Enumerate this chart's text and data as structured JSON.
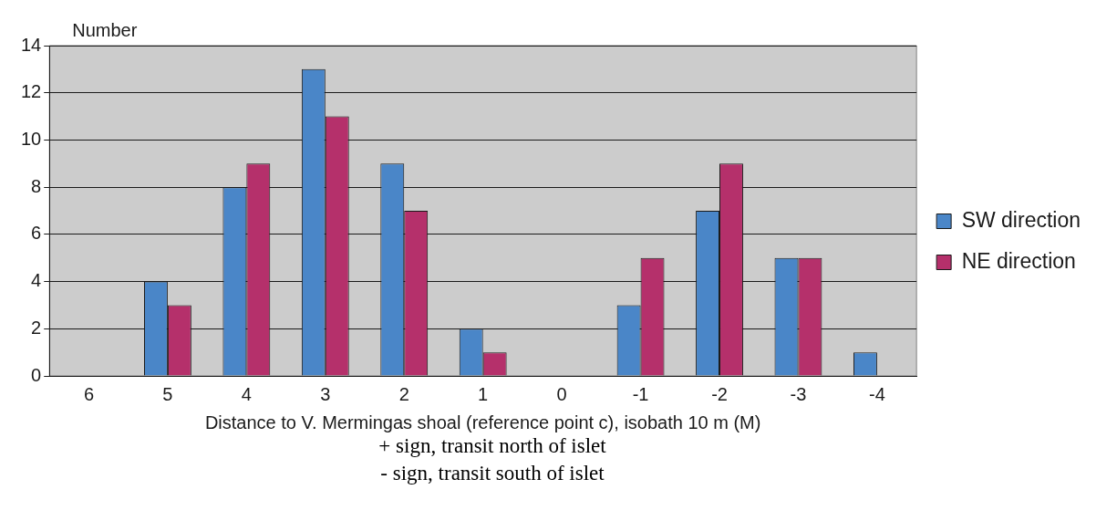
{
  "chart_data": {
    "type": "bar",
    "ylabel": "Number",
    "xlabel": "Distance to V. Mermingas shoal (reference point c), isobath 10 m (M)",
    "categories": [
      "6",
      "5",
      "4",
      "3",
      "2",
      "1",
      "0",
      "-1",
      "-2",
      "-3",
      "-4"
    ],
    "series": [
      {
        "name": "SW direction",
        "color": "#4a86c8",
        "values": [
          0,
          4,
          8,
          13,
          9,
          2,
          0,
          3,
          7,
          5,
          1
        ]
      },
      {
        "name": "NE direction",
        "color": "#b5306b",
        "values": [
          0,
          3,
          9,
          11,
          7,
          1,
          0,
          5,
          9,
          5,
          0
        ]
      }
    ],
    "ylim": [
      0,
      14
    ],
    "yticks": [
      0,
      2,
      4,
      6,
      8,
      10,
      12,
      14
    ],
    "grid": "y",
    "legend": "right",
    "annotations": [
      "+ sign, transit north of  islet",
      "- sign, transit south of islet"
    ]
  }
}
